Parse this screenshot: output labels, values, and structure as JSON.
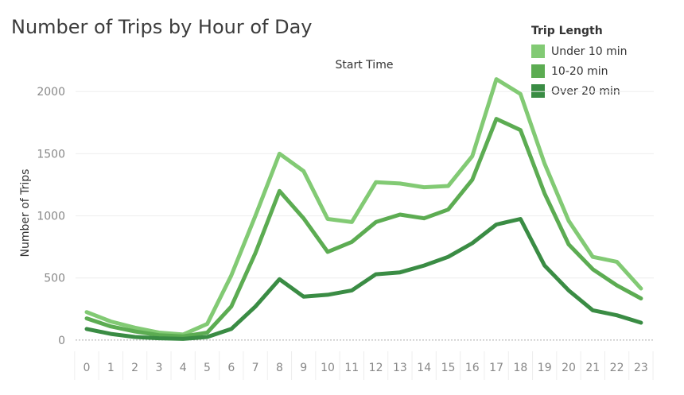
{
  "chart_data": {
    "type": "line",
    "title": "Number of Trips by Hour of Day",
    "xlabel": "Start Time",
    "ylabel": "Number of Trips",
    "x": [
      0,
      1,
      2,
      3,
      4,
      5,
      6,
      7,
      8,
      9,
      10,
      11,
      12,
      13,
      14,
      15,
      16,
      17,
      18,
      19,
      20,
      21,
      22,
      23
    ],
    "ylim": [
      -90,
      2110
    ],
    "yticks": [
      0,
      500,
      1000,
      1500,
      2000
    ],
    "grid": true,
    "legend": {
      "title": "Trip Length",
      "placement": "top-right"
    },
    "series": [
      {
        "name": "Under 10 min",
        "color": "#82ca74",
        "values": [
          225,
          150,
          100,
          60,
          45,
          130,
          520,
          1000,
          1500,
          1360,
          975,
          950,
          1270,
          1260,
          1230,
          1240,
          1480,
          2100,
          1980,
          1420,
          960,
          670,
          630,
          415
        ]
      },
      {
        "name": "10-20 min",
        "color": "#5cac52",
        "values": [
          175,
          110,
          70,
          40,
          30,
          60,
          270,
          700,
          1200,
          980,
          710,
          790,
          950,
          1010,
          980,
          1050,
          1290,
          1780,
          1690,
          1180,
          770,
          570,
          440,
          335
        ]
      },
      {
        "name": "Over 20 min",
        "color": "#3a8c44",
        "values": [
          90,
          50,
          25,
          15,
          10,
          25,
          90,
          270,
          490,
          350,
          365,
          400,
          530,
          545,
          600,
          670,
          780,
          930,
          975,
          600,
          400,
          240,
          200,
          140
        ]
      }
    ]
  }
}
